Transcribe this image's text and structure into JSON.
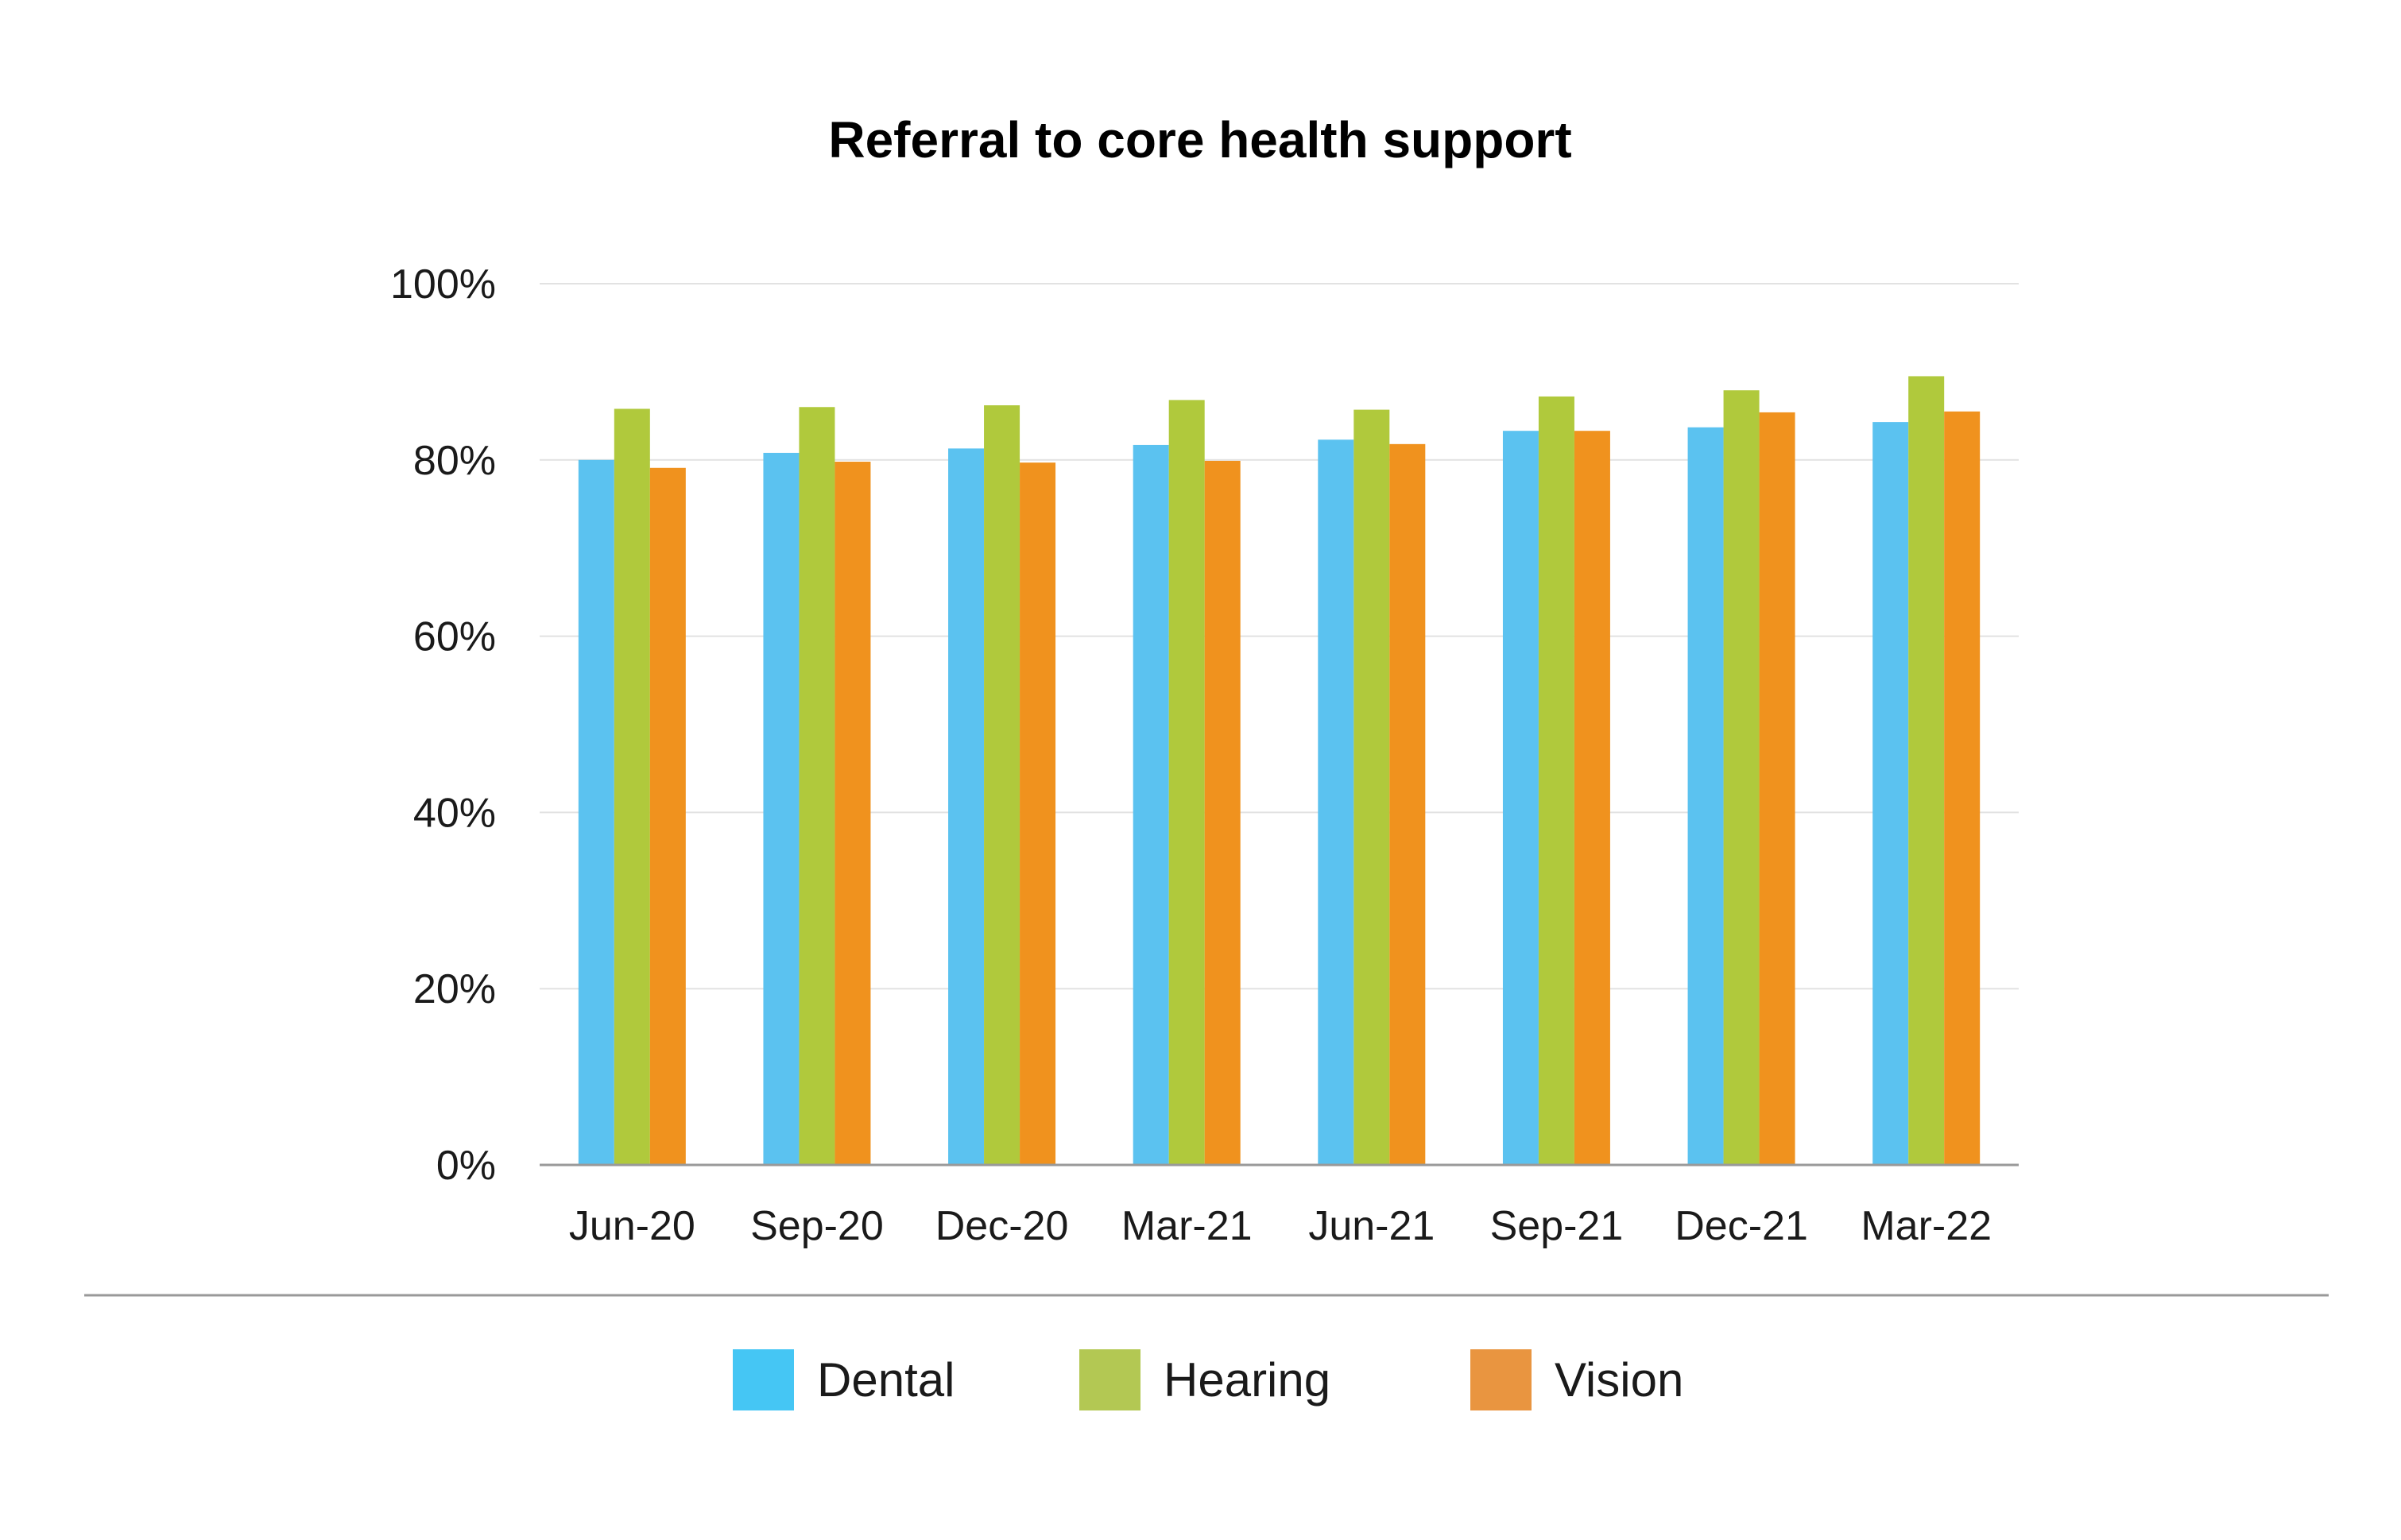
{
  "chart_data": {
    "type": "bar",
    "title": "Referral to core health support",
    "xlabel": "",
    "ylabel": "",
    "categories": [
      "Jun-20",
      "Sep-20",
      "Dec-20",
      "Mar-21",
      "Jun-21",
      "Sep-21",
      "Dec-21",
      "Mar-22"
    ],
    "series": [
      {
        "name": "Dental",
        "color": "#5BC2F0",
        "values": [
          80.0,
          80.8,
          81.3,
          81.7,
          82.3,
          83.3,
          83.7,
          84.3
        ]
      },
      {
        "name": "Hearing",
        "color": "#B0C93C",
        "values": [
          85.8,
          86.0,
          86.2,
          86.8,
          85.7,
          87.2,
          87.9,
          89.5
        ]
      },
      {
        "name": "Vision",
        "color": "#F0921E",
        "values": [
          79.1,
          79.8,
          79.7,
          79.9,
          81.8,
          83.3,
          85.4,
          85.5
        ]
      }
    ],
    "ylim": [
      0,
      100
    ],
    "yticks": [
      0,
      20,
      40,
      60,
      80,
      100
    ],
    "ytick_labels": [
      "0%",
      "20%",
      "40%",
      "60%",
      "80%",
      "100%"
    ],
    "grid": true,
    "legend": {
      "position": "bottom",
      "items": [
        {
          "label": "Dental",
          "color": "#45C6F4"
        },
        {
          "label": "Hearing",
          "color": "#B3C853"
        },
        {
          "label": "Vision",
          "color": "#E99540"
        }
      ]
    }
  }
}
